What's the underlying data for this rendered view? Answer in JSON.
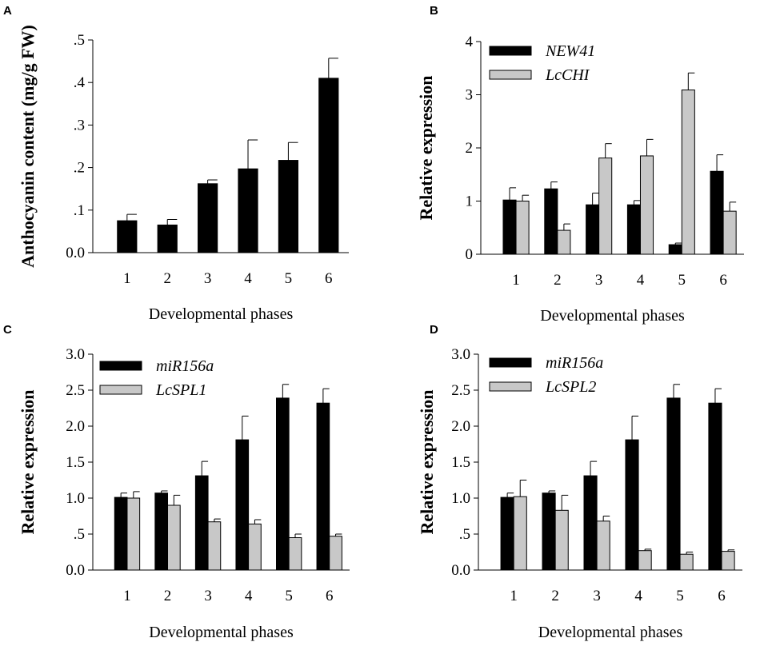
{
  "chart_data": [
    {
      "panel": "A",
      "type": "bar",
      "categories": [
        "1",
        "2",
        "3",
        "4",
        "5",
        "6"
      ],
      "series": [
        {
          "name": "Anthocyanin",
          "color": "#000000",
          "values": [
            0.075,
            0.065,
            0.162,
            0.197,
            0.217,
            0.41
          ],
          "errors": [
            0.015,
            0.013,
            0.009,
            0.068,
            0.042,
            0.047
          ]
        }
      ],
      "xlabel": "Developmental phases",
      "ylabel": "Anthocyanin content (mg/g FW)",
      "ylim": [
        0,
        0.5
      ],
      "yticks": [
        0,
        0.1,
        0.2,
        0.3,
        0.4,
        0.5
      ],
      "ytick_labels": [
        "0.0",
        ".1",
        ".2",
        ".3",
        ".4",
        ".5"
      ],
      "legend": []
    },
    {
      "panel": "B",
      "type": "bar",
      "categories": [
        "1",
        "2",
        "3",
        "4",
        "5",
        "6"
      ],
      "series": [
        {
          "name": "NEW41",
          "color": "#000000",
          "values": [
            1.02,
            1.23,
            0.93,
            0.93,
            0.18,
            1.56
          ],
          "errors": [
            0.23,
            0.13,
            0.22,
            0.08,
            0.03,
            0.31
          ]
        },
        {
          "name": "LcCHI",
          "color": "#c8c8c8",
          "values": [
            1.0,
            0.45,
            1.81,
            1.85,
            3.09,
            0.81
          ],
          "errors": [
            0.11,
            0.12,
            0.27,
            0.31,
            0.32,
            0.17
          ]
        }
      ],
      "xlabel": "Developmental phases",
      "ylabel": "Relative expression",
      "ylim": [
        0,
        4
      ],
      "yticks": [
        0,
        1,
        2,
        3,
        4
      ],
      "ytick_labels": [
        "0",
        "1",
        "2",
        "3",
        "4"
      ],
      "legend": [
        "NEW41",
        "LcCHI"
      ]
    },
    {
      "panel": "C",
      "type": "bar",
      "categories": [
        "1",
        "2",
        "3",
        "4",
        "5",
        "6"
      ],
      "series": [
        {
          "name": "miR156a",
          "color": "#000000",
          "values": [
            1.01,
            1.07,
            1.31,
            1.81,
            2.39,
            2.32
          ],
          "errors": [
            0.06,
            0.03,
            0.2,
            0.33,
            0.19,
            0.2
          ]
        },
        {
          "name": "LcSPL1",
          "color": "#c8c8c8",
          "values": [
            1.0,
            0.9,
            0.67,
            0.64,
            0.45,
            0.47
          ],
          "errors": [
            0.09,
            0.14,
            0.04,
            0.06,
            0.05,
            0.03
          ]
        }
      ],
      "xlabel": "Developmental phases",
      "ylabel": "Relative expression",
      "ylim": [
        0,
        3.0
      ],
      "yticks": [
        0,
        0.5,
        1.0,
        1.5,
        2.0,
        2.5,
        3.0
      ],
      "ytick_labels": [
        "0.0",
        ".5",
        "1.0",
        "1.5",
        "2.0",
        "2.5",
        "3.0"
      ],
      "legend": [
        "miR156a",
        "LcSPL1"
      ]
    },
    {
      "panel": "D",
      "type": "bar",
      "categories": [
        "1",
        "2",
        "3",
        "4",
        "5",
        "6"
      ],
      "series": [
        {
          "name": "miR156a",
          "color": "#000000",
          "values": [
            1.01,
            1.07,
            1.31,
            1.81,
            2.39,
            2.32
          ],
          "errors": [
            0.06,
            0.03,
            0.2,
            0.33,
            0.19,
            0.2
          ]
        },
        {
          "name": "LcSPL2",
          "color": "#c8c8c8",
          "values": [
            1.02,
            0.83,
            0.68,
            0.27,
            0.22,
            0.26
          ],
          "errors": [
            0.23,
            0.21,
            0.07,
            0.02,
            0.03,
            0.02
          ]
        }
      ],
      "xlabel": "Developmental phases",
      "ylabel": "Relative expression",
      "ylim": [
        0,
        3.0
      ],
      "yticks": [
        0,
        0.5,
        1.0,
        1.5,
        2.0,
        2.5,
        3.0
      ],
      "ytick_labels": [
        "0.0",
        ".5",
        "1.0",
        "1.5",
        "2.0",
        "2.5",
        "3.0"
      ],
      "legend": [
        "miR156a",
        "LcSPL2"
      ]
    }
  ]
}
